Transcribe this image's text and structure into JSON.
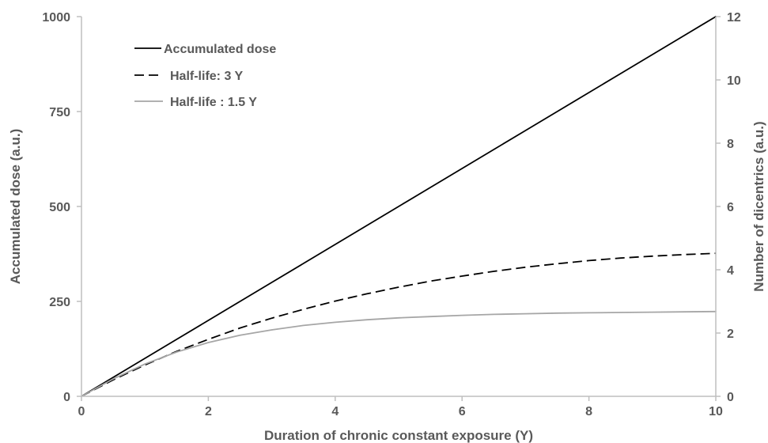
{
  "chart_data": {
    "type": "line",
    "xlabel": "Duration of chronic constant exposure (Y)",
    "ylabel": "Accumulated  dose (a.u.)",
    "y2label": "Number of dicentrics (a.u.)",
    "xlim": [
      0,
      10
    ],
    "ylim": [
      0,
      1000
    ],
    "y2lim": [
      0,
      12
    ],
    "x_ticks": [
      "0",
      "2",
      "4",
      "6",
      "8",
      "10"
    ],
    "y_ticks": [
      "0",
      "250",
      "500",
      "750",
      "1000"
    ],
    "y2_ticks": [
      "0",
      "2",
      "4",
      "6",
      "8",
      "10",
      "12"
    ],
    "grid": false,
    "legend_position": "top-left",
    "x": [
      0,
      0.5,
      1,
      1.5,
      2,
      2.5,
      3,
      3.5,
      4,
      4.5,
      5,
      5.5,
      6,
      6.5,
      7,
      7.5,
      8,
      8.5,
      9,
      9.5,
      10
    ],
    "series": [
      {
        "name": "Accumulated dose",
        "axis": "left",
        "color": "#000000",
        "dash": "solid",
        "values": [
          0,
          50,
          100,
          150,
          200,
          250,
          300,
          350,
          400,
          450,
          500,
          550,
          600,
          650,
          700,
          750,
          800,
          850,
          900,
          950,
          1000
        ]
      },
      {
        "name": "Half-life: 3 Y",
        "axis": "right",
        "color": "#000000",
        "dash": "dashed",
        "values": [
          0,
          0.52,
          0.99,
          1.42,
          1.8,
          2.16,
          2.47,
          2.75,
          3.01,
          3.24,
          3.45,
          3.64,
          3.8,
          3.95,
          4.08,
          4.19,
          4.29,
          4.37,
          4.43,
          4.48,
          4.52
        ]
      },
      {
        "name": "Half-life : 1.5 Y",
        "axis": "right",
        "color": "#a6a6a6",
        "dash": "solid",
        "values": [
          0,
          0.55,
          1.02,
          1.4,
          1.7,
          1.93,
          2.1,
          2.24,
          2.34,
          2.42,
          2.48,
          2.52,
          2.56,
          2.59,
          2.61,
          2.63,
          2.64,
          2.65,
          2.66,
          2.67,
          2.68
        ]
      }
    ]
  }
}
